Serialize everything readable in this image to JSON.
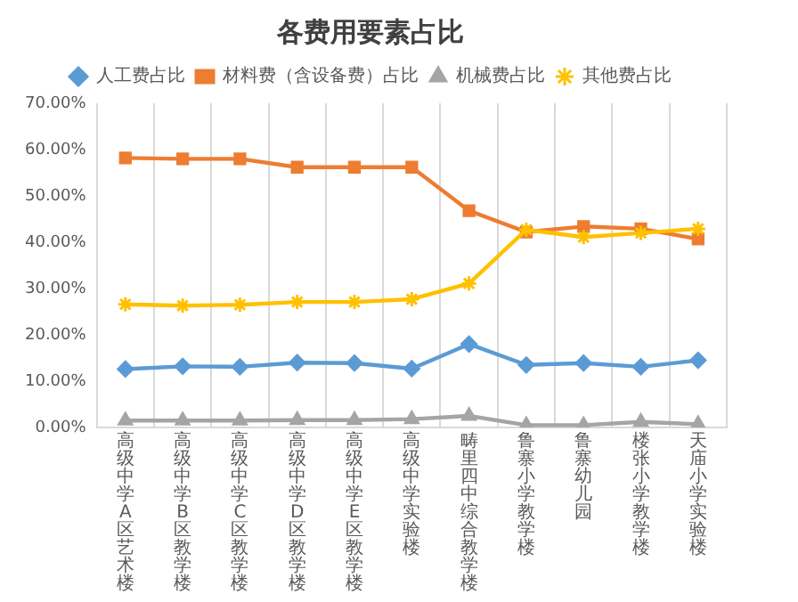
{
  "chart_data": {
    "type": "line",
    "title": "各费用要素占比",
    "categories": [
      "高级中学A区艺术楼",
      "高级中学B区教学楼",
      "高级中学C区教学楼",
      "高级中学D区教学楼",
      "高级中学E区教学楼",
      "高级中学实验楼",
      "畴里四中综合教学楼",
      "鲁寨小学教学楼",
      "鲁寨幼儿园",
      "楼张小学教学楼",
      "天庙小学实验楼"
    ],
    "series": [
      {
        "name": "人工费占比",
        "color": "#5b9bd5",
        "marker": "diamond",
        "values": [
          12.6,
          13.2,
          13.1,
          14.0,
          13.9,
          12.7,
          18.0,
          13.5,
          13.9,
          13.1,
          14.5
        ]
      },
      {
        "name": "材料费（含设备费）占比",
        "color": "#ed7d31",
        "marker": "square",
        "values": [
          58.2,
          58.0,
          58.0,
          56.2,
          56.2,
          56.2,
          46.8,
          42.2,
          43.4,
          42.9,
          40.7
        ]
      },
      {
        "name": "机械费占比",
        "color": "#a5a5a5",
        "marker": "triangle",
        "values": [
          1.5,
          1.5,
          1.5,
          1.6,
          1.6,
          1.8,
          2.5,
          0.5,
          0.5,
          1.2,
          0.7
        ]
      },
      {
        "name": "其他费占比",
        "color": "#ffc000",
        "marker": "cross",
        "values": [
          26.6,
          26.3,
          26.5,
          27.1,
          27.1,
          27.7,
          31.1,
          42.7,
          41.1,
          42.0,
          42.9
        ]
      }
    ],
    "ylim": [
      0,
      70
    ],
    "yticks": [
      {
        "value": 0,
        "label": "0.00%"
      },
      {
        "value": 10,
        "label": "10.00%"
      },
      {
        "value": 20,
        "label": "20.00%"
      },
      {
        "value": 30,
        "label": "30.00%"
      },
      {
        "value": 40,
        "label": "40.00%"
      },
      {
        "value": 50,
        "label": "50.00%"
      },
      {
        "value": 60,
        "label": "60.00%"
      },
      {
        "value": 70,
        "label": "70.00%"
      }
    ],
    "grid": "x",
    "legend": "top"
  }
}
